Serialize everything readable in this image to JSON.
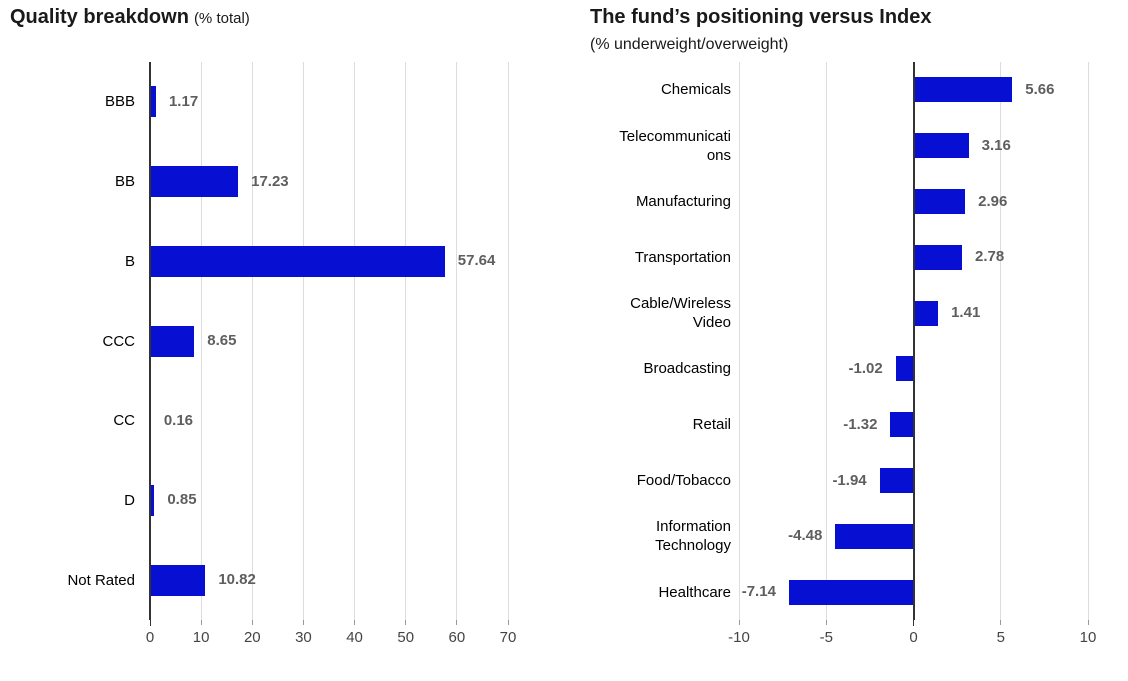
{
  "page": {
    "background": "#ffffff"
  },
  "colors": {
    "bar": "#0710d2",
    "gridline": "#dddddd",
    "zero_axis_line": "#333333",
    "tick_mark": "#999999",
    "tick_label": "#444444",
    "value_label": "#5e5e5e",
    "category_label": "#000000",
    "title": "#1a1a1a"
  },
  "chart_data": [
    {
      "type": "bar",
      "orientation": "horizontal",
      "title": "Quality breakdown",
      "subtitle": "(% total)",
      "categories": [
        "BBB",
        "BB",
        "B",
        "CCC",
        "CC",
        "D",
        "Not Rated"
      ],
      "values": [
        1.17,
        17.23,
        57.64,
        8.65,
        0.16,
        0.85,
        10.82
      ],
      "value_labels": [
        "1.17",
        "17.23",
        "57.64",
        "8.65",
        "0.16",
        "0.85",
        "10.82"
      ],
      "xlim": [
        0,
        70
      ],
      "xticks": [
        0,
        10,
        20,
        30,
        40,
        50,
        60,
        70
      ],
      "xlabel": "",
      "ylabel": "",
      "bar_color": "#0710d2",
      "grid": true,
      "legend": "none",
      "value_labels_shown": true
    },
    {
      "type": "bar",
      "orientation": "horizontal",
      "title": "The fund’s positioning versus Index",
      "subtitle": "(% underweight/overweight)",
      "categories": [
        "Chemicals",
        "Telecommunicati\nons",
        "Manufacturing",
        "Transportation",
        "Cable/Wireless\nVideo",
        "Broadcasting",
        "Retail",
        "Food/Tobacco",
        "Information\nTechnology",
        "Healthcare"
      ],
      "values": [
        5.66,
        3.16,
        2.96,
        2.78,
        1.41,
        -1.02,
        -1.32,
        -1.94,
        -4.48,
        -7.14
      ],
      "value_labels": [
        "5.66",
        "3.16",
        "2.96",
        "2.78",
        "1.41",
        "-1.02",
        "-1.32",
        "-1.94",
        "-4.48",
        "-7.14"
      ],
      "xlim": [
        -10,
        10
      ],
      "xticks": [
        -10,
        -5,
        0,
        5,
        10
      ],
      "xlabel": "",
      "ylabel": "",
      "bar_color": "#0710d2",
      "grid": true,
      "legend": "none",
      "value_labels_shown": true
    }
  ]
}
